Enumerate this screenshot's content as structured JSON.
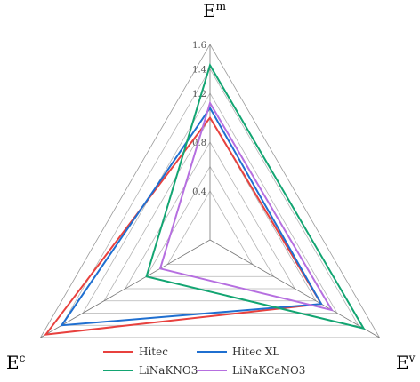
{
  "chart_data": {
    "type": "radar",
    "axes": [
      {
        "key": "Em",
        "base": "E",
        "sup": "m"
      },
      {
        "key": "Ev",
        "base": "E",
        "sup": "v"
      },
      {
        "key": "Ec",
        "base": "E",
        "sup": "c"
      }
    ],
    "rlim": [
      0,
      1.6
    ],
    "ticks": [
      0.4,
      0.6,
      0.8,
      1.0,
      1.2,
      1.4,
      1.6
    ],
    "tick_labels": [
      "0.4",
      "0.6",
      "0.8",
      "1",
      "1.2",
      "1.4",
      "1.6"
    ],
    "tick_labels_visible": [
      "0.4",
      "",
      "0.8",
      "",
      "1.2",
      "1.4",
      "1.6"
    ],
    "series": [
      {
        "name": "Hitec",
        "color": "#e8413e",
        "values": [
          1.0,
          1.05,
          1.55
        ]
      },
      {
        "name": "Hitec XL",
        "color": "#1f6fd0",
        "values": [
          1.08,
          1.05,
          1.4
        ]
      },
      {
        "name": "LiNaKNO3",
        "color": "#13a572",
        "values": [
          1.43,
          1.45,
          0.6
        ]
      },
      {
        "name": "LiNaKCaNO3",
        "color": "#b66fe0",
        "values": [
          1.12,
          1.15,
          0.47
        ]
      }
    ],
    "grid": true,
    "legend_position": "bottom"
  }
}
